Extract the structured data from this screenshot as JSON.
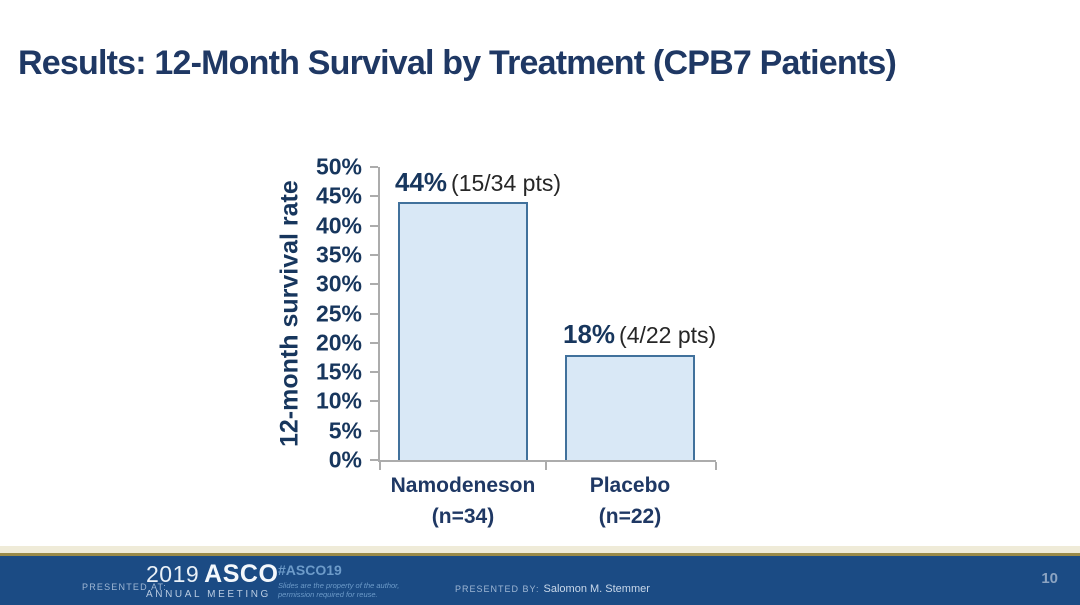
{
  "slide": {
    "title": "Results: 12-Month Survival by Treatment (CPB7 Patients)"
  },
  "chart_data": {
    "type": "bar",
    "title": "",
    "xlabel": "",
    "ylabel": "12-month survival rate",
    "categories": [
      "Namodeneson",
      "Placebo"
    ],
    "category_sublabels": [
      "(n=34)",
      "(n=22)"
    ],
    "values": [
      44,
      18
    ],
    "value_labels": [
      {
        "pct": "44%",
        "detail": "(15/34 pts)"
      },
      {
        "pct": "18%",
        "detail": "(4/22 pts)"
      }
    ],
    "ylim": [
      0,
      50
    ],
    "ytick_step": 5,
    "ytick_labels": [
      "0%",
      "5%",
      "10%",
      "15%",
      "20%",
      "25%",
      "30%",
      "35%",
      "40%",
      "45%",
      "50%"
    ],
    "xtick_positions": [
      0,
      0.494,
      1
    ],
    "grid": false,
    "legend": null
  },
  "footer": {
    "presented_at_label": "PRESENTED AT:",
    "logo_year": "2019",
    "logo_name": "ASCO",
    "logo_subtitle": "ANNUAL MEETING",
    "hashtag": "#ASCO19",
    "disclaimer_line1": "Slides are the property of the author,",
    "disclaimer_line2": "permission required for reuse.",
    "presented_by_label": "PRESENTED BY:",
    "presenter_name": "Salomon M. Stemmer",
    "page_number": "10"
  },
  "colors": {
    "title_navy": "#1F3864",
    "tick_navy": "#17365D",
    "bar_fill": "#D9E8F6",
    "bar_border": "#41719C",
    "axis_gray": "#ACACAC",
    "footer_navy": "#1B4B84",
    "gold": "#998A49",
    "cream": "#EFEBD8"
  }
}
